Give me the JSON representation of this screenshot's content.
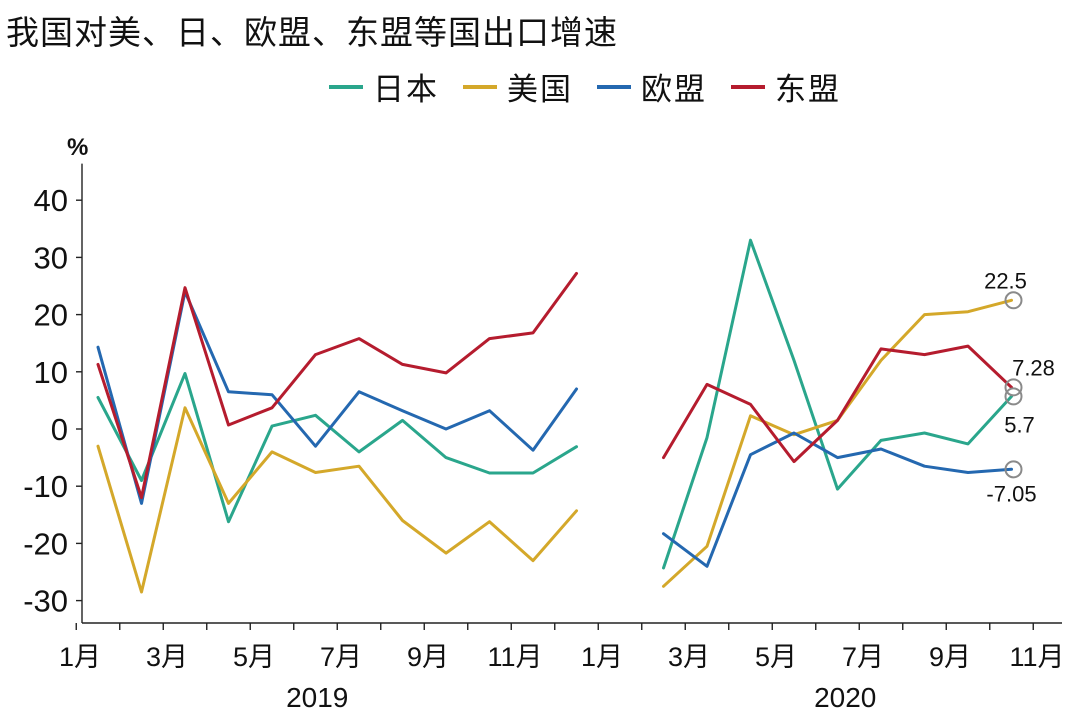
{
  "chart_data": {
    "type": "line",
    "title": "我国对美、日、欧盟、东盟等国出口增速",
    "ylabel": "%",
    "ylim": [
      -35,
      45
    ],
    "y_ticks": [
      40,
      30,
      20,
      10,
      0,
      -10,
      -20,
      -30
    ],
    "x": [
      0,
      1,
      2,
      3,
      4,
      5,
      6,
      7,
      8,
      9,
      10,
      11,
      12,
      13,
      14,
      15,
      16,
      17,
      18,
      19,
      20,
      21
    ],
    "x_tick_labels": [
      "1月",
      "3月",
      "5月",
      "7月",
      "9月",
      "11月",
      "1月",
      "3月",
      "5月",
      "7月",
      "9月",
      "11月"
    ],
    "year_labels": [
      "2019",
      "2020"
    ],
    "series": [
      {
        "name": "日本",
        "color": "#2aa68c",
        "values": [
          5.5,
          -9.0,
          9.7,
          -16.2,
          0.5,
          2.4,
          -4.0,
          1.5,
          -5.0,
          -7.7,
          -7.7,
          -3.1,
          null,
          -24.3,
          -1.5,
          33.0,
          12.0,
          -10.5,
          -2.0,
          -0.7,
          -2.6,
          5.7
        ]
      },
      {
        "name": "美国",
        "color": "#d4a82a",
        "values": [
          -3.0,
          -28.5,
          3.7,
          -13.0,
          -4.0,
          -7.6,
          -6.5,
          -16.0,
          -21.7,
          -16.2,
          -23.0,
          -14.3,
          null,
          -27.5,
          -20.5,
          2.3,
          -1.0,
          1.5,
          12.0,
          20.0,
          20.5,
          22.5
        ]
      },
      {
        "name": "欧盟",
        "color": "#2468b0",
        "values": [
          14.3,
          -13.0,
          24.0,
          6.5,
          6.0,
          -3.0,
          6.5,
          3.2,
          0.0,
          3.2,
          -3.7,
          7.0,
          null,
          -18.3,
          -24.0,
          -4.5,
          -0.7,
          -5.0,
          -3.5,
          -6.5,
          -7.6,
          -7.05
        ]
      },
      {
        "name": "东盟",
        "color": "#b51c2e",
        "values": [
          11.3,
          -12.0,
          24.7,
          0.7,
          3.7,
          13.0,
          15.8,
          11.3,
          9.8,
          15.8,
          16.8,
          27.2,
          null,
          -5.0,
          7.8,
          4.3,
          -5.7,
          1.5,
          14.0,
          13.0,
          14.5,
          7.28
        ]
      }
    ],
    "annotations": [
      {
        "text": "22.5",
        "series": "美国",
        "value": 22.5
      },
      {
        "text": "7.28",
        "series": "东盟",
        "value": 7.28
      },
      {
        "text": "5.7",
        "series": "日本",
        "value": 5.7
      },
      {
        "text": "-7.05",
        "series": "欧盟",
        "value": -7.05
      }
    ],
    "grid": false,
    "legend_position": "top-center"
  }
}
